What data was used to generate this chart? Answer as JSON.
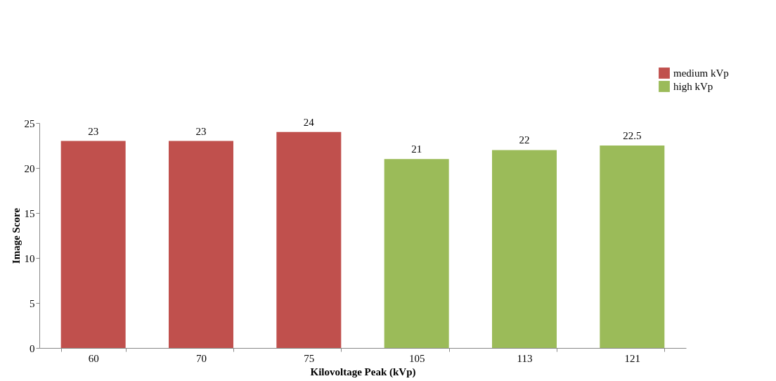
{
  "chart_data": {
    "type": "bar",
    "xlabel": "Kilovoltage Peak (kVp)",
    "ylabel": "Image Score",
    "categories": [
      "60",
      "70",
      "75",
      "105",
      "113",
      "121"
    ],
    "series": [
      {
        "name": "medium kVp",
        "color": "#c0504d",
        "values": [
          23,
          23,
          24,
          null,
          null,
          null
        ]
      },
      {
        "name": "high kVp",
        "color": "#9bbb59",
        "values": [
          null,
          null,
          null,
          21,
          22,
          22.5
        ]
      }
    ],
    "ylim": [
      0,
      25
    ],
    "yticks": [
      0,
      5,
      10,
      15,
      20,
      25
    ],
    "grid": false,
    "legend": "top right",
    "data_labels": true
  }
}
